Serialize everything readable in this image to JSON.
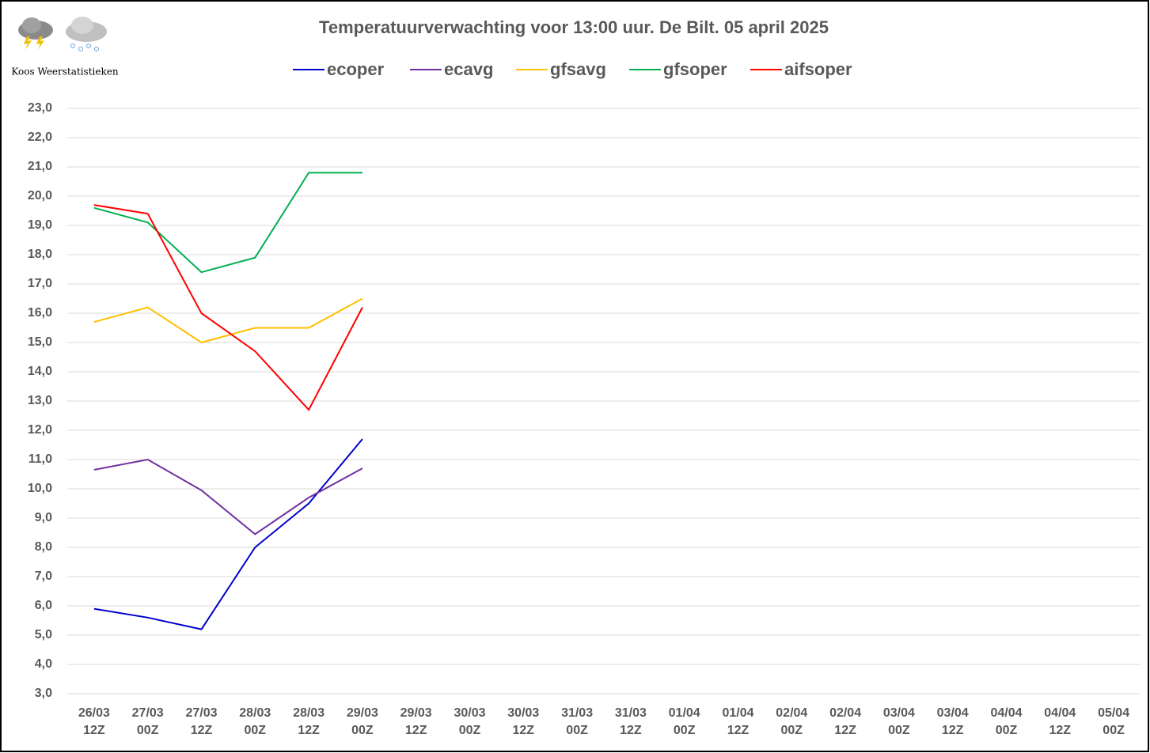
{
  "chart_data": {
    "type": "line",
    "title": "Temperatuurverwachting voor 13:00 uur. De Bilt. 05 april 2025",
    "logo_text": "Koos Weerstatistieken",
    "categories": [
      "26/03\n12Z",
      "27/03\n00Z",
      "27/03\n12Z",
      "28/03\n00Z",
      "28/03\n12Z",
      "29/03\n00Z",
      "29/03\n12Z",
      "30/03\n00Z",
      "30/03\n12Z",
      "31/03\n00Z",
      "31/03\n12Z",
      "01/04\n00Z",
      "01/04\n12Z",
      "02/04\n00Z",
      "02/04\n12Z",
      "03/04\n00Z",
      "03/04\n12Z",
      "04/04\n00Z",
      "04/04\n12Z",
      "05/04\n00Z"
    ],
    "series": [
      {
        "name": "ecoper",
        "color": "#0000cc",
        "values": [
          5.9,
          5.6,
          5.2,
          8.0,
          9.5,
          11.7,
          null,
          null,
          null,
          null,
          null,
          null,
          null,
          null,
          null,
          null,
          null,
          null,
          null,
          null
        ]
      },
      {
        "name": "ecavg",
        "color": "#7030a0",
        "values": [
          10.65,
          11.0,
          9.95,
          8.45,
          9.7,
          10.7,
          null,
          null,
          null,
          null,
          null,
          null,
          null,
          null,
          null,
          null,
          null,
          null,
          null,
          null
        ]
      },
      {
        "name": "gfsavg",
        "color": "#ffc000",
        "values": [
          15.7,
          16.2,
          15.0,
          15.5,
          15.5,
          16.5,
          null,
          null,
          null,
          null,
          null,
          null,
          null,
          null,
          null,
          null,
          null,
          null,
          null,
          null
        ]
      },
      {
        "name": "gfsoper",
        "color": "#00b050",
        "values": [
          19.6,
          19.1,
          17.4,
          17.9,
          20.8,
          20.8,
          null,
          null,
          null,
          null,
          null,
          null,
          null,
          null,
          null,
          null,
          null,
          null,
          null,
          null
        ]
      },
      {
        "name": "aifsoper",
        "color": "#ff0000",
        "values": [
          19.7,
          19.4,
          16.0,
          14.7,
          12.7,
          16.2,
          null,
          null,
          null,
          null,
          null,
          null,
          null,
          null,
          null,
          null,
          null,
          null,
          null,
          null
        ]
      }
    ],
    "ylim": [
      3,
      23
    ],
    "yticks": [
      {
        "value": 3,
        "label": "3,0"
      },
      {
        "value": 4,
        "label": "4,0"
      },
      {
        "value": 5,
        "label": "5,0"
      },
      {
        "value": 6,
        "label": "6,0"
      },
      {
        "value": 7,
        "label": "7,0"
      },
      {
        "value": 8,
        "label": "8,0"
      },
      {
        "value": 9,
        "label": "9,0"
      },
      {
        "value": 10,
        "label": "10,0"
      },
      {
        "value": 11,
        "label": "11,0"
      },
      {
        "value": 12,
        "label": "12,0"
      },
      {
        "value": 13,
        "label": "13,0"
      },
      {
        "value": 14,
        "label": "14,0"
      },
      {
        "value": 15,
        "label": "15,0"
      },
      {
        "value": 16,
        "label": "16,0"
      },
      {
        "value": 17,
        "label": "17,0"
      },
      {
        "value": 18,
        "label": "18,0"
      },
      {
        "value": 19,
        "label": "19,0"
      },
      {
        "value": 20,
        "label": "20,0"
      },
      {
        "value": 21,
        "label": "21,0"
      },
      {
        "value": 22,
        "label": "22,0"
      },
      {
        "value": 23,
        "label": "23,0"
      }
    ],
    "grid": true,
    "legend": "top"
  }
}
